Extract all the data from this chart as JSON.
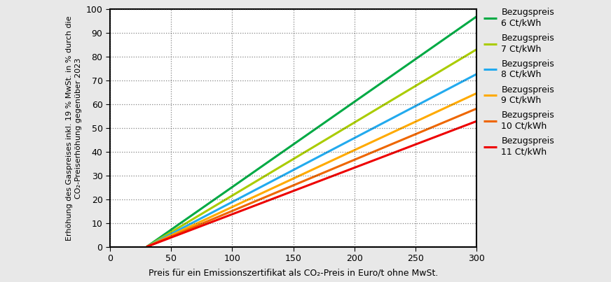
{
  "title": "",
  "xlabel": "Preis für ein Emissionszertifikat als CO₂-Preis in Euro/t ohne MwSt.",
  "ylabel": "Erhöhung des Gaspreises inkl. 19 % MwSt. in % durch die\nCO₂-Preiserhöhung gegenüber 2023",
  "x_start": 30,
  "x_end": 300,
  "co2_base": 30,
  "emission_factor": 0.181,
  "vat_factor": 1.19,
  "base_prices_ct": [
    6,
    7,
    8,
    9,
    10,
    11
  ],
  "line_colors": [
    "#00aa44",
    "#aacc00",
    "#22aaee",
    "#ffaa00",
    "#ee6600",
    "#ee0000"
  ],
  "legend_labels": [
    "Bezugspreis\n6 Ct/kWh",
    "Bezugspreis\n7 Ct/kWh",
    "Bezugspreis\n8 Ct/kWh",
    "Bezugspreis\n9 Ct/kWh",
    "Bezugspreis\n10 Ct/kWh",
    "Bezugspreis\n11 Ct/kWh"
  ],
  "xlim": [
    0,
    300
  ],
  "ylim": [
    0,
    100
  ],
  "xticks": [
    0,
    50,
    100,
    150,
    200,
    250,
    300
  ],
  "yticks": [
    0,
    10,
    20,
    30,
    40,
    50,
    60,
    70,
    80,
    90,
    100
  ],
  "background_color": "#e8e8e8",
  "plot_bg_color": "#ffffff",
  "grid_color": "#333333",
  "linewidth": 2.2,
  "fig_width": 8.72,
  "fig_height": 4.03,
  "dpi": 100
}
